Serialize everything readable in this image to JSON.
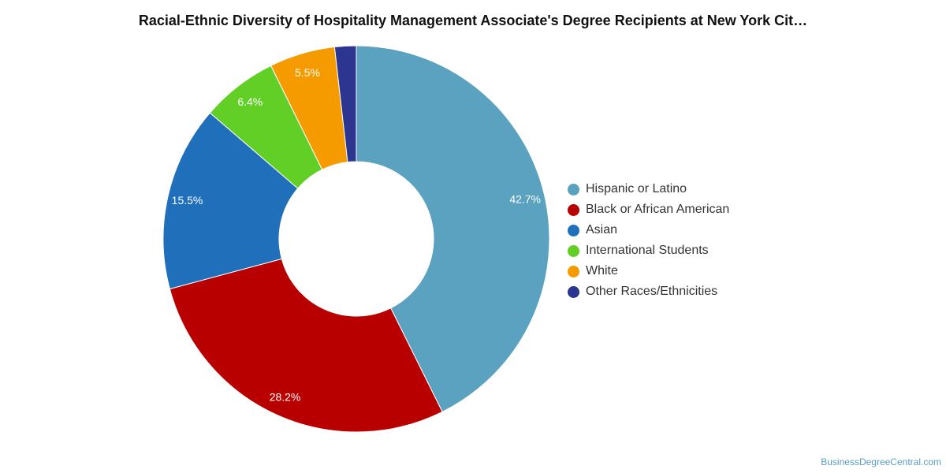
{
  "chart_data": {
    "type": "pie",
    "style": "donut",
    "title": "Racial-Ethnic Diversity of Hospitality Management Associate's Degree Recipients at New York Cit…",
    "categories": [
      "Hispanic or Latino",
      "Black or African American",
      "Asian",
      "International Students",
      "White",
      "Other Races/Ethnicities"
    ],
    "values": [
      42.7,
      28.2,
      15.5,
      6.4,
      5.5,
      1.8
    ],
    "labels": [
      "42.7%",
      "28.2%",
      "15.5%",
      "6.4%",
      "5.5%",
      ""
    ],
    "colors": [
      "#5ba1c0",
      "#b80000",
      "#1f6fba",
      "#62cf27",
      "#f59b00",
      "#2c3590"
    ],
    "legend_position": "right"
  },
  "footer": {
    "source": "BusinessDegreeCentral.com"
  }
}
